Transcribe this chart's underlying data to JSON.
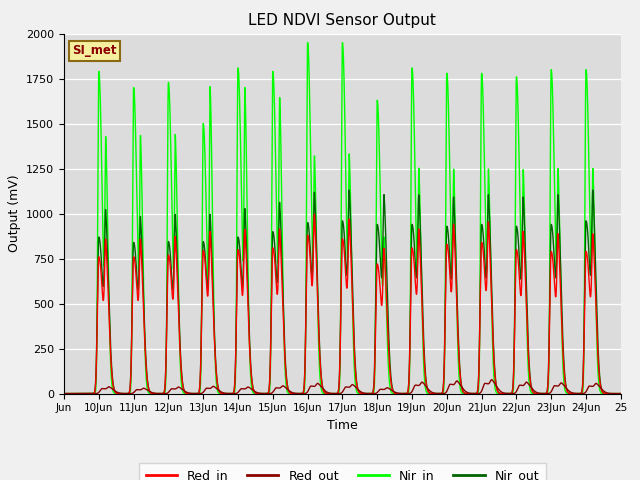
{
  "title": "LED NDVI Sensor Output",
  "xlabel": "Time",
  "ylabel": "Output (mV)",
  "ylim": [
    0,
    2000
  ],
  "bg_color": "#dcdcdc",
  "legend_label": "SI_met",
  "legend_box_color": "#f5f0a0",
  "legend_box_border": "#8b6914",
  "legend_text_color": "#8b0000",
  "x_tick_labels": [
    "Jun",
    "10Jun",
    "11Jun",
    "12Jun",
    "13Jun",
    "14Jun",
    "15Jun",
    "16Jun",
    "17Jun",
    "18Jun",
    "19Jun",
    "20Jun",
    "21Jun",
    "22Jun",
    "23Jun",
    "24Jun",
    "25"
  ],
  "series": {
    "Red_in": {
      "color": "#ff0000",
      "lw": 1.0
    },
    "Red_out": {
      "color": "#8b0000",
      "lw": 1.0
    },
    "Nir_in": {
      "color": "#00ff00",
      "lw": 1.0
    },
    "Nir_out": {
      "color": "#006400",
      "lw": 1.0
    }
  },
  "cycle_centers": [
    1.0,
    2.0,
    3.0,
    4.0,
    5.0,
    6.0,
    7.0,
    8.0,
    9.0,
    10.0,
    11.0,
    12.0,
    13.0,
    14.0,
    15.0
  ],
  "amp_red_in": [
    760,
    760,
    770,
    795,
    800,
    810,
    880,
    860,
    720,
    810,
    830,
    840,
    800,
    790,
    790
  ],
  "amp_red_in2": [
    620,
    620,
    630,
    650,
    660,
    660,
    720,
    700,
    580,
    660,
    680,
    690,
    650,
    640,
    640
  ],
  "amp_red_out": [
    28,
    22,
    27,
    30,
    27,
    32,
    42,
    37,
    24,
    47,
    52,
    57,
    47,
    44,
    42
  ],
  "amp_nir_in": [
    1790,
    1700,
    1730,
    1500,
    1810,
    1790,
    1950,
    1950,
    1630,
    1810,
    1780,
    1780,
    1760,
    1800,
    1800
  ],
  "amp_nir_in2": [
    1180,
    1200,
    1200,
    1500,
    1450,
    1400,
    1050,
    1060,
    640,
    1000,
    1000,
    1000,
    1000,
    1000,
    1000
  ],
  "amp_nir_out": [
    870,
    840,
    845,
    845,
    870,
    900,
    950,
    960,
    940,
    940,
    930,
    940,
    930,
    940,
    960
  ],
  "amp_nir_out2": [
    750,
    720,
    730,
    730,
    755,
    780,
    820,
    830,
    810,
    810,
    800,
    810,
    800,
    810,
    830
  ]
}
